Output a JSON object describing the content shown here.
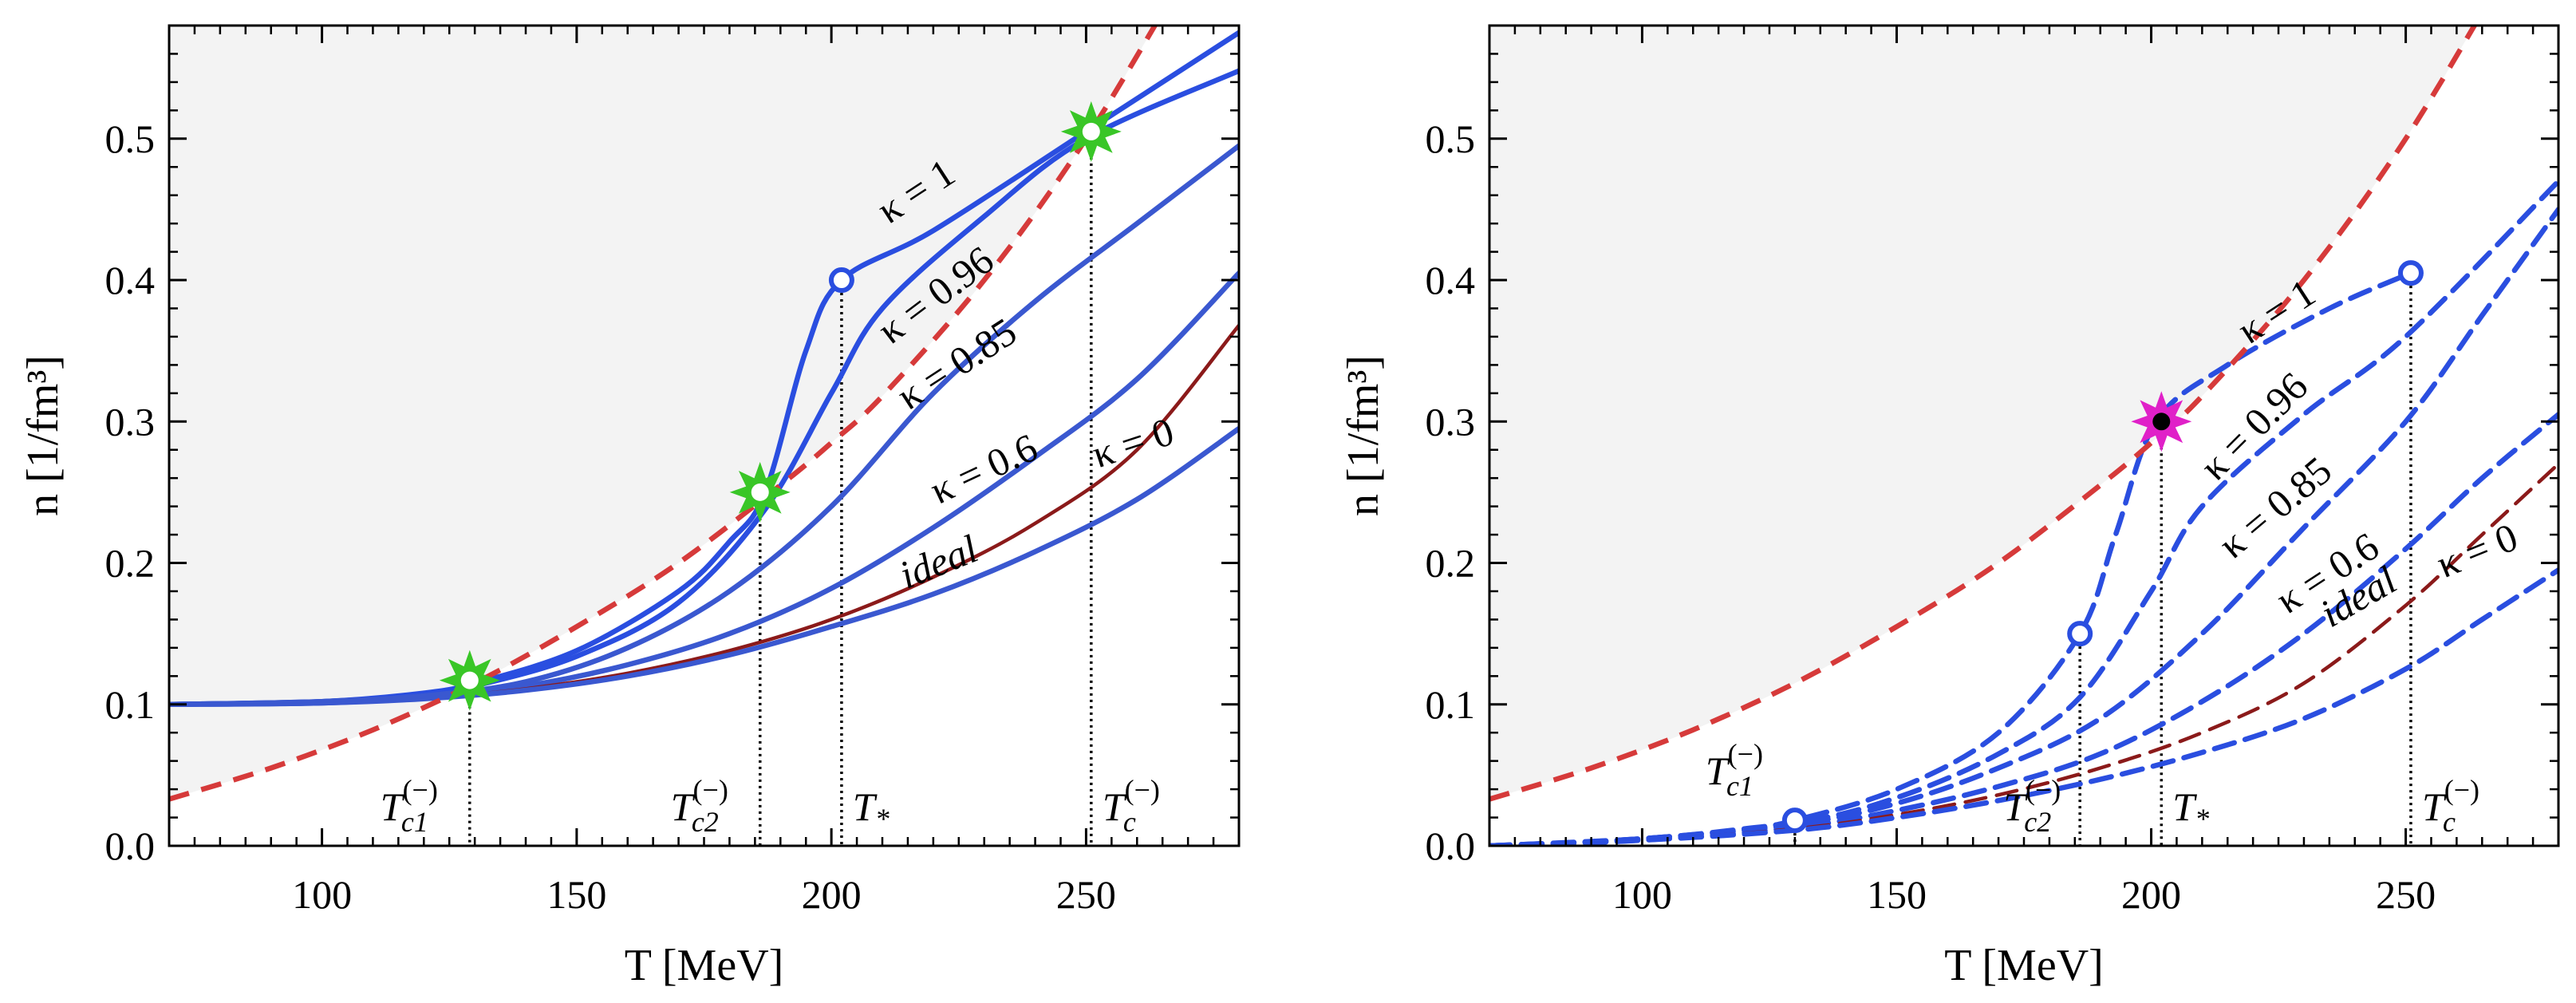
{
  "chart_data": [
    {
      "type": "line",
      "panel": "left",
      "xlabel": "T [MeV]",
      "ylabel": "n [1/fm³]",
      "xlim": [
        70,
        280
      ],
      "ylim": [
        0.0,
        0.58
      ],
      "xticks": [
        "100",
        "150",
        "200",
        "250"
      ],
      "yticks": [
        "0.0",
        "0.1",
        "0.2",
        "0.3",
        "0.4",
        "0.5"
      ],
      "boundary": {
        "name": "boundary (red dashed)",
        "color": "#d63a3a",
        "x": [
          70,
          90,
          110,
          130,
          150,
          170,
          190,
          200,
          210,
          230,
          250,
          270
        ],
        "y": [
          0.033,
          0.055,
          0.082,
          0.115,
          0.155,
          0.2,
          0.255,
          0.285,
          0.318,
          0.4,
          0.5,
          0.62
        ]
      },
      "series": [
        {
          "name": "κ = 1",
          "color": "#2a4ee0",
          "x": [
            70,
            100,
            120,
            130,
            150,
            170,
            180,
            187,
            195,
            202,
            220,
            250,
            280
          ],
          "y": [
            0.1,
            0.102,
            0.108,
            0.115,
            0.138,
            0.18,
            0.215,
            0.25,
            0.35,
            0.4,
            0.435,
            0.505,
            0.575
          ]
        },
        {
          "name": "κ = 0.96",
          "color": "#2a4ee0",
          "x": [
            70,
            100,
            120,
            130,
            150,
            170,
            187,
            200,
            210,
            230,
            250,
            280
          ],
          "y": [
            0.1,
            0.102,
            0.107,
            0.113,
            0.134,
            0.172,
            0.238,
            0.32,
            0.38,
            0.445,
            0.5,
            0.548
          ]
        },
        {
          "name": "κ = 0.85",
          "color": "#3a58d0",
          "x": [
            70,
            100,
            120,
            140,
            160,
            180,
            200,
            220,
            240,
            260,
            280
          ],
          "y": [
            0.1,
            0.102,
            0.106,
            0.116,
            0.14,
            0.18,
            0.24,
            0.32,
            0.385,
            0.44,
            0.495
          ]
        },
        {
          "name": "κ = 0.6",
          "color": "#3a58d0",
          "x": [
            70,
            100,
            120,
            140,
            160,
            180,
            200,
            220,
            240,
            260,
            280
          ],
          "y": [
            0.1,
            0.101,
            0.105,
            0.113,
            0.128,
            0.15,
            0.182,
            0.225,
            0.275,
            0.33,
            0.405
          ]
        },
        {
          "name": "ideal",
          "color": "#8b1a1a",
          "x": [
            70,
            100,
            120,
            140,
            160,
            180,
            200,
            220,
            240,
            260,
            280
          ],
          "y": [
            0.1,
            0.101,
            0.104,
            0.111,
            0.122,
            0.138,
            0.16,
            0.19,
            0.228,
            0.28,
            0.368
          ]
        },
        {
          "name": "κ = 0",
          "color": "#3a58d0",
          "x": [
            70,
            100,
            120,
            140,
            160,
            180,
            200,
            220,
            240,
            260,
            280
          ],
          "y": [
            0.1,
            0.101,
            0.104,
            0.11,
            0.12,
            0.135,
            0.155,
            0.178,
            0.208,
            0.245,
            0.295
          ]
        }
      ],
      "markers": [
        {
          "kind": "star",
          "color": "#39c627",
          "x": 129,
          "y": 0.117
        },
        {
          "kind": "star",
          "color": "#39c627",
          "x": 186,
          "y": 0.25
        },
        {
          "kind": "star",
          "color": "#39c627",
          "x": 251,
          "y": 0.505
        },
        {
          "kind": "circle",
          "color": "#2a4ee0",
          "x": 202,
          "y": 0.4
        }
      ],
      "vlines": [
        {
          "label_base": "T",
          "label_sub": "c1",
          "label_sup": "(−)",
          "x": 129,
          "ytop": 0.117
        },
        {
          "label_base": "T",
          "label_sub": "c2",
          "label_sup": "(−)",
          "x": 186,
          "ytop": 0.25
        },
        {
          "label_base": "T",
          "label_sub": "*",
          "label_sup": "",
          "x": 202,
          "ytop": 0.4
        },
        {
          "label_base": "T",
          "label_sub": "c",
          "label_sup": "(−)",
          "x": 251,
          "ytop": 0.505
        }
      ]
    },
    {
      "type": "line",
      "panel": "right",
      "xlabel": "T [MeV]",
      "ylabel": "n [1/fm³]",
      "xlim": [
        70,
        280
      ],
      "ylim": [
        0.0,
        0.58
      ],
      "xticks": [
        "100",
        "150",
        "200",
        "250"
      ],
      "yticks": [
        "0.0",
        "0.1",
        "0.2",
        "0.3",
        "0.4",
        "0.5"
      ],
      "boundary": {
        "name": "boundary (red dashed)",
        "color": "#d63a3a",
        "x": [
          70,
          90,
          110,
          130,
          150,
          170,
          190,
          200,
          210,
          230,
          250,
          270
        ],
        "y": [
          0.033,
          0.055,
          0.082,
          0.115,
          0.155,
          0.2,
          0.255,
          0.285,
          0.318,
          0.4,
          0.5,
          0.62
        ]
      },
      "series": [
        {
          "name": "κ = 1",
          "color": "#2a4ee0",
          "x": [
            70,
            100,
            120,
            130,
            150,
            170,
            186,
            193,
            201,
            215,
            235,
            251
          ],
          "y": [
            0.0,
            0.005,
            0.012,
            0.018,
            0.04,
            0.08,
            0.15,
            0.22,
            0.3,
            0.34,
            0.38,
            0.405
          ]
        },
        {
          "name": "κ = 0.96",
          "color": "#2a4ee0",
          "x": [
            70,
            100,
            130,
            150,
            170,
            186,
            200,
            210,
            230,
            250,
            280
          ],
          "y": [
            0.0,
            0.005,
            0.016,
            0.034,
            0.065,
            0.105,
            0.18,
            0.24,
            0.305,
            0.36,
            0.47
          ]
        },
        {
          "name": "κ = 0.85",
          "color": "#2a4ee0",
          "x": [
            70,
            100,
            130,
            150,
            170,
            190,
            210,
            230,
            250,
            265,
            280
          ],
          "y": [
            0.0,
            0.005,
            0.015,
            0.03,
            0.055,
            0.09,
            0.15,
            0.225,
            0.3,
            0.375,
            0.45
          ]
        },
        {
          "name": "κ = 0.6",
          "color": "#2a4ee0",
          "x": [
            70,
            100,
            130,
            150,
            170,
            190,
            210,
            230,
            250,
            265,
            280
          ],
          "y": [
            0.0,
            0.004,
            0.013,
            0.025,
            0.042,
            0.065,
            0.102,
            0.15,
            0.21,
            0.26,
            0.305
          ]
        },
        {
          "name": "ideal",
          "color": "#8b1a1a",
          "x": [
            70,
            100,
            130,
            150,
            170,
            190,
            210,
            230,
            250,
            265,
            280
          ],
          "y": [
            0.0,
            0.004,
            0.012,
            0.022,
            0.036,
            0.055,
            0.08,
            0.115,
            0.17,
            0.22,
            0.27
          ]
        },
        {
          "name": "κ = 0",
          "color": "#2a4ee0",
          "x": [
            70,
            100,
            130,
            150,
            170,
            190,
            210,
            230,
            250,
            265,
            280
          ],
          "y": [
            0.0,
            0.004,
            0.011,
            0.02,
            0.032,
            0.047,
            0.066,
            0.09,
            0.125,
            0.16,
            0.195
          ]
        }
      ],
      "markers": [
        {
          "kind": "circle",
          "color": "#2a4ee0",
          "x": 130,
          "y": 0.018
        },
        {
          "kind": "circle",
          "color": "#2a4ee0",
          "x": 186,
          "y": 0.15
        },
        {
          "kind": "circle",
          "color": "#2a4ee0",
          "x": 251,
          "y": 0.405
        },
        {
          "kind": "star",
          "color": "#e020c8",
          "x": 202,
          "y": 0.3
        }
      ],
      "vlines": [
        {
          "label_base": "T",
          "label_sub": "c1",
          "label_sup": "(−)",
          "x": 130,
          "ytop": 0.018
        },
        {
          "label_base": "T",
          "label_sub": "c2",
          "label_sup": "(−)",
          "x": 186,
          "ytop": 0.15
        },
        {
          "label_base": "T",
          "label_sub": "*",
          "label_sup": "",
          "x": 202,
          "ytop": 0.3
        },
        {
          "label_base": "T",
          "label_sub": "c",
          "label_sup": "(−)",
          "x": 251,
          "ytop": 0.405
        }
      ]
    }
  ]
}
